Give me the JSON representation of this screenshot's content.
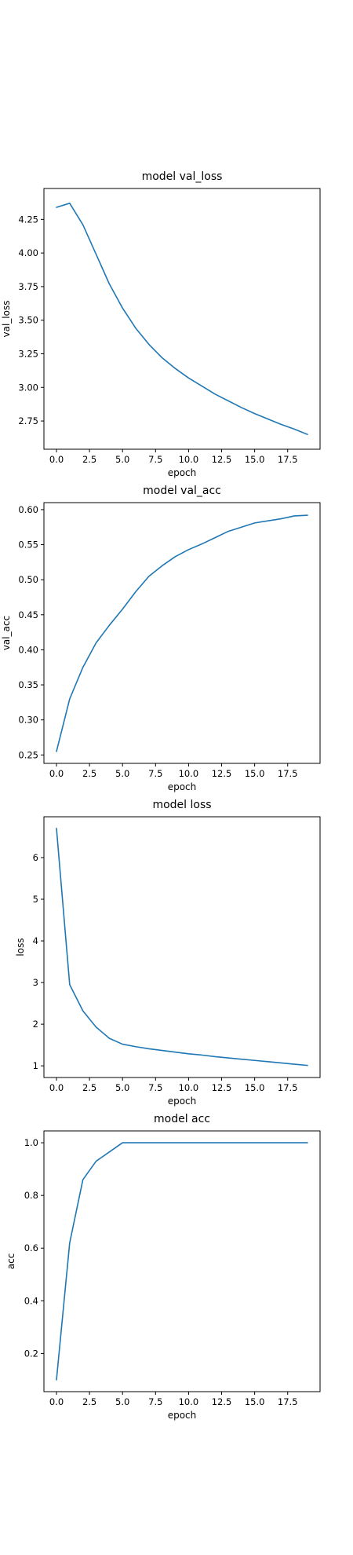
{
  "style": {
    "line_color": "#1f77b4",
    "frame_color": "#000000",
    "background": "#ffffff"
  },
  "chart_data": [
    {
      "type": "line",
      "title": "model val_loss",
      "xlabel": "epoch",
      "ylabel": "val_loss",
      "x": [
        0,
        1,
        2,
        3,
        4,
        5,
        6,
        7,
        8,
        9,
        10,
        11,
        12,
        13,
        14,
        15,
        16,
        17,
        18,
        19
      ],
      "series": [
        {
          "values": [
            4.34,
            4.37,
            4.21,
            3.99,
            3.77,
            3.59,
            3.44,
            3.32,
            3.22,
            3.14,
            3.07,
            3.01,
            2.95,
            2.9,
            2.85,
            2.805,
            2.765,
            2.725,
            2.69,
            2.65
          ]
        }
      ],
      "xlim": [
        -0.95,
        19.95
      ],
      "ylim": [
        2.54,
        4.48
      ],
      "xticks": [
        0,
        2.5,
        5,
        7.5,
        10,
        12.5,
        15,
        17.5
      ],
      "xtick_labels": [
        "0.0",
        "2.5",
        "5.0",
        "7.5",
        "10.0",
        "12.5",
        "15.0",
        "17.5"
      ],
      "yticks": [
        2.75,
        3.0,
        3.25,
        3.5,
        3.75,
        4.0,
        4.25
      ],
      "ytick_labels": [
        "2.75",
        "3.00",
        "3.25",
        "3.50",
        "3.75",
        "4.00",
        "4.25"
      ],
      "grid": false,
      "legend": "none"
    },
    {
      "type": "line",
      "title": "model val_acc",
      "xlabel": "epoch",
      "ylabel": "val_acc",
      "x": [
        0,
        1,
        2,
        3,
        4,
        5,
        6,
        7,
        8,
        9,
        10,
        11,
        12,
        13,
        14,
        15,
        16,
        17,
        18,
        19
      ],
      "series": [
        {
          "values": [
            0.255,
            0.33,
            0.375,
            0.41,
            0.435,
            0.458,
            0.483,
            0.505,
            0.52,
            0.533,
            0.543,
            0.551,
            0.56,
            0.569,
            0.575,
            0.581,
            0.584,
            0.587,
            0.591,
            0.592
          ]
        }
      ],
      "xlim": [
        -0.95,
        19.95
      ],
      "ylim": [
        0.238,
        0.61
      ],
      "xticks": [
        0,
        2.5,
        5,
        7.5,
        10,
        12.5,
        15,
        17.5
      ],
      "xtick_labels": [
        "0.0",
        "2.5",
        "5.0",
        "7.5",
        "10.0",
        "12.5",
        "15.0",
        "17.5"
      ],
      "yticks": [
        0.25,
        0.3,
        0.35,
        0.4,
        0.45,
        0.5,
        0.55,
        0.6
      ],
      "ytick_labels": [
        "0.25",
        "0.30",
        "0.35",
        "0.40",
        "0.45",
        "0.50",
        "0.55",
        "0.60"
      ],
      "grid": false,
      "legend": "none"
    },
    {
      "type": "line",
      "title": "model loss",
      "xlabel": "epoch",
      "ylabel": "loss",
      "x": [
        0,
        1,
        2,
        3,
        4,
        5,
        6,
        7,
        8,
        9,
        10,
        11,
        12,
        13,
        14,
        15,
        16,
        17,
        18,
        19
      ],
      "series": [
        {
          "values": [
            6.7,
            2.95,
            2.32,
            1.93,
            1.66,
            1.52,
            1.46,
            1.41,
            1.37,
            1.33,
            1.29,
            1.26,
            1.22,
            1.19,
            1.16,
            1.13,
            1.1,
            1.07,
            1.04,
            1.01
          ]
        }
      ],
      "xlim": [
        -0.95,
        19.95
      ],
      "ylim": [
        0.72,
        6.98
      ],
      "xticks": [
        0,
        2.5,
        5,
        7.5,
        10,
        12.5,
        15,
        17.5
      ],
      "xtick_labels": [
        "0.0",
        "2.5",
        "5.0",
        "7.5",
        "10.0",
        "12.5",
        "15.0",
        "17.5"
      ],
      "yticks": [
        1,
        2,
        3,
        4,
        5,
        6
      ],
      "ytick_labels": [
        "1",
        "2",
        "3",
        "4",
        "5",
        "6"
      ],
      "grid": false,
      "legend": "none"
    },
    {
      "type": "line",
      "title": "model acc",
      "xlabel": "epoch",
      "ylabel": "acc",
      "x": [
        0,
        1,
        2,
        3,
        4,
        5,
        6,
        7,
        8,
        9,
        10,
        11,
        12,
        13,
        14,
        15,
        16,
        17,
        18,
        19
      ],
      "series": [
        {
          "values": [
            0.1,
            0.62,
            0.86,
            0.93,
            0.965,
            1.0,
            1.0,
            1.0,
            1.0,
            1.0,
            1.0,
            1.0,
            1.0,
            1.0,
            1.0,
            1.0,
            1.0,
            1.0,
            1.0,
            1.0
          ]
        }
      ],
      "xlim": [
        -0.95,
        19.95
      ],
      "ylim": [
        0.055,
        1.045
      ],
      "xticks": [
        0,
        2.5,
        5,
        7.5,
        10,
        12.5,
        15,
        17.5
      ],
      "xtick_labels": [
        "0.0",
        "2.5",
        "5.0",
        "7.5",
        "10.0",
        "12.5",
        "15.0",
        "17.5"
      ],
      "yticks": [
        0.2,
        0.4,
        0.6,
        0.8,
        1.0
      ],
      "ytick_labels": [
        "0.2",
        "0.4",
        "0.6",
        "0.8",
        "1.0"
      ],
      "grid": false,
      "legend": "none"
    }
  ]
}
